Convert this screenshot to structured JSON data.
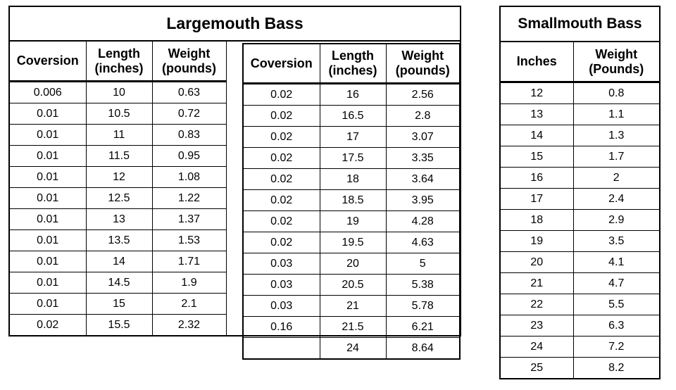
{
  "largemouth": {
    "title": "Largemouth Bass",
    "left_headers": {
      "conversion": "Coversion",
      "length": "Length (inches)",
      "weight": "Weight (pounds)"
    },
    "right_headers": {
      "conversion": "Coversion",
      "length": "Length (inches)",
      "weight": "Weight (pounds)"
    },
    "left_rows": [
      {
        "conversion": "0.006",
        "length": "10",
        "weight": "0.63"
      },
      {
        "conversion": "0.01",
        "length": "10.5",
        "weight": "0.72"
      },
      {
        "conversion": "0.01",
        "length": "11",
        "weight": "0.83"
      },
      {
        "conversion": "0.01",
        "length": "11.5",
        "weight": "0.95"
      },
      {
        "conversion": "0.01",
        "length": "12",
        "weight": "1.08"
      },
      {
        "conversion": "0.01",
        "length": "12.5",
        "weight": "1.22"
      },
      {
        "conversion": "0.01",
        "length": "13",
        "weight": "1.37"
      },
      {
        "conversion": "0.01",
        "length": "13.5",
        "weight": "1.53"
      },
      {
        "conversion": "0.01",
        "length": "14",
        "weight": "1.71"
      },
      {
        "conversion": "0.01",
        "length": "14.5",
        "weight": "1.9"
      },
      {
        "conversion": "0.01",
        "length": "15",
        "weight": "2.1"
      },
      {
        "conversion": "0.02",
        "length": "15.5",
        "weight": "2.32"
      }
    ],
    "right_rows": [
      {
        "conversion": "0.02",
        "length": "16",
        "weight": "2.56"
      },
      {
        "conversion": "0.02",
        "length": "16.5",
        "weight": "2.8"
      },
      {
        "conversion": "0.02",
        "length": "17",
        "weight": "3.07"
      },
      {
        "conversion": "0.02",
        "length": "17.5",
        "weight": "3.35"
      },
      {
        "conversion": "0.02",
        "length": "18",
        "weight": "3.64"
      },
      {
        "conversion": "0.02",
        "length": "18.5",
        "weight": "3.95"
      },
      {
        "conversion": "0.02",
        "length": "19",
        "weight": "4.28"
      },
      {
        "conversion": "0.02",
        "length": "19.5",
        "weight": "4.63"
      },
      {
        "conversion": "0.03",
        "length": "20",
        "weight": "5"
      },
      {
        "conversion": "0.03",
        "length": "20.5",
        "weight": "5.38"
      },
      {
        "conversion": "0.03",
        "length": "21",
        "weight": "5.78"
      },
      {
        "conversion": "0.16",
        "length": "21.5",
        "weight": "6.21"
      },
      {
        "conversion": "",
        "length": "24",
        "weight": "8.64"
      }
    ]
  },
  "smallmouth": {
    "title": "Smallmouth Bass",
    "headers": {
      "inches": "Inches",
      "weight": "Weight (Pounds)"
    },
    "rows": [
      {
        "inches": "12",
        "weight": "0.8"
      },
      {
        "inches": "13",
        "weight": "1.1"
      },
      {
        "inches": "14",
        "weight": "1.3"
      },
      {
        "inches": "15",
        "weight": "1.7"
      },
      {
        "inches": "16",
        "weight": "2"
      },
      {
        "inches": "17",
        "weight": "2.4"
      },
      {
        "inches": "18",
        "weight": "2.9"
      },
      {
        "inches": "19",
        "weight": "3.5"
      },
      {
        "inches": "20",
        "weight": "4.1"
      },
      {
        "inches": "21",
        "weight": "4.7"
      },
      {
        "inches": "22",
        "weight": "5.5"
      },
      {
        "inches": "23",
        "weight": "6.3"
      },
      {
        "inches": "24",
        "weight": "7.2"
      },
      {
        "inches": "25",
        "weight": "8.2"
      }
    ]
  }
}
